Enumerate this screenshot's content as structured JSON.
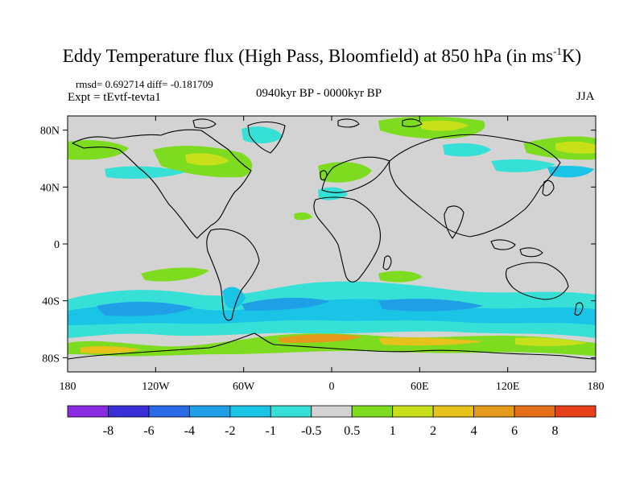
{
  "title": {
    "main": "Eddy Temperature flux (High Pass, Bloomfield) at 850 hPa (in ms",
    "exponent": "-1",
    "tail": "K)"
  },
  "stats": "rmsd= 0.692714 diff= -0.181709",
  "expt": "Expt = tEvtf-tevta1",
  "period": "0940kyr BP - 0000kyr BP",
  "season": "JJA",
  "map": {
    "lat_ticks": [
      "80N",
      "40N",
      "0",
      "40S",
      "80S"
    ],
    "lon_ticks": [
      "180",
      "120W",
      "60W",
      "0",
      "60E",
      "120E",
      "180"
    ],
    "background_color": "#d3d3d3",
    "coastline_color": "#000000"
  },
  "colorbar": {
    "colors": [
      "#8a2be2",
      "#3a2fd6",
      "#2a6ae6",
      "#1e9fe6",
      "#19c4e6",
      "#36e0d6",
      "#d3d3d3",
      "#7ddc1f",
      "#c8e01a",
      "#e6c21a",
      "#e69a1a",
      "#e6701a",
      "#e6401a"
    ],
    "labels": [
      "-8",
      "-6",
      "-4",
      "-2",
      "-1",
      "-0.5",
      "0.5",
      "1",
      "2",
      "4",
      "6",
      "8"
    ]
  },
  "chart_data": {
    "type": "heatmap",
    "variable": "Eddy Temperature flux (High Pass, Bloomfield) at 850 hPa",
    "units": "ms-1K",
    "xlim": [
      -180,
      180
    ],
    "ylim": [
      -90,
      90
    ],
    "contour_levels": [
      -8,
      -6,
      -4,
      -2,
      -1,
      -0.5,
      0.5,
      1,
      2,
      4,
      6,
      8
    ],
    "regions": [
      {
        "lon": [
          -180,
          180
        ],
        "lat": [
          -90,
          90
        ],
        "level": "-0.5 to 0.5"
      },
      {
        "lon": [
          -180,
          180
        ],
        "lat": [
          -72,
          -48
        ],
        "level": "-2 to -1"
      },
      {
        "lon": [
          -130,
          -40
        ],
        "lat": [
          -62,
          -48
        ],
        "level": "-4 to -2"
      },
      {
        "lon": [
          -150,
          130
        ],
        "lat": [
          -80,
          -70
        ],
        "level": "1 to 4"
      },
      {
        "lon": [
          -180,
          -145
        ],
        "lat": [
          50,
          70
        ],
        "level": "0.5 to 1"
      },
      {
        "lon": [
          -120,
          -60
        ],
        "lat": [
          45,
          65
        ],
        "level": "0.5 to 1"
      },
      {
        "lon": [
          -10,
          40
        ],
        "lat": [
          35,
          50
        ],
        "level": "0.5 to 1"
      },
      {
        "lon": [
          40,
          90
        ],
        "lat": [
          68,
          82
        ],
        "level": "0.5 to 2"
      },
      {
        "lon": [
          130,
          180
        ],
        "lat": [
          55,
          70
        ],
        "level": "0.5 to 2"
      },
      {
        "lon": [
          -140,
          -100
        ],
        "lat": [
          -15,
          -5
        ],
        "level": "0.5 to 1"
      },
      {
        "lon": [
          90,
          120
        ],
        "lat": [
          45,
          55
        ],
        "level": "-1 to -0.5"
      },
      {
        "lon": [
          -90,
          -60
        ],
        "lat": [
          -45,
          -30
        ],
        "level": "-2 to -1"
      }
    ]
  }
}
